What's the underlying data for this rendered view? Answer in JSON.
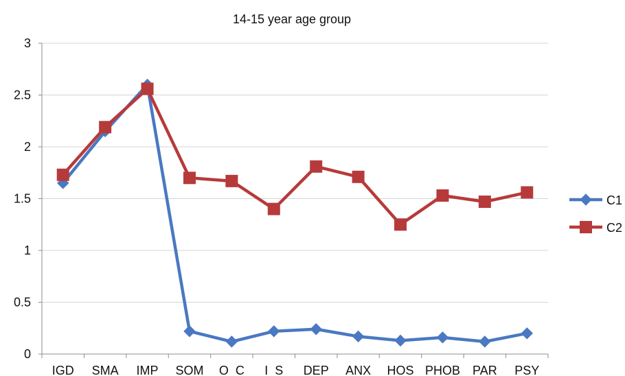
{
  "chart_data": {
    "type": "line",
    "title": "14-15 year age group",
    "categories": [
      "IGD",
      "SMA",
      "IMP",
      "SOM",
      "O  C",
      "I  S",
      "DEP",
      "ANX",
      "HOS",
      "PHOB",
      "PAR",
      "PSY"
    ],
    "series": [
      {
        "name": "C1",
        "color": "#4a78c2",
        "marker": "diamond",
        "values": [
          1.65,
          2.15,
          2.6,
          0.22,
          0.12,
          0.22,
          0.24,
          0.17,
          0.13,
          0.16,
          0.12,
          0.2
        ]
      },
      {
        "name": "C2",
        "color": "#b73a3a",
        "marker": "square",
        "values": [
          1.73,
          2.19,
          2.56,
          1.7,
          1.67,
          1.4,
          1.81,
          1.71,
          1.25,
          1.53,
          1.47,
          1.56
        ]
      }
    ],
    "xlabel": "",
    "ylabel": "",
    "ylim": [
      0,
      3
    ],
    "yticks": [
      "0",
      "0.5",
      "1",
      "1.5",
      "2",
      "2.5",
      "3"
    ],
    "grid": true,
    "legend": "right"
  }
}
